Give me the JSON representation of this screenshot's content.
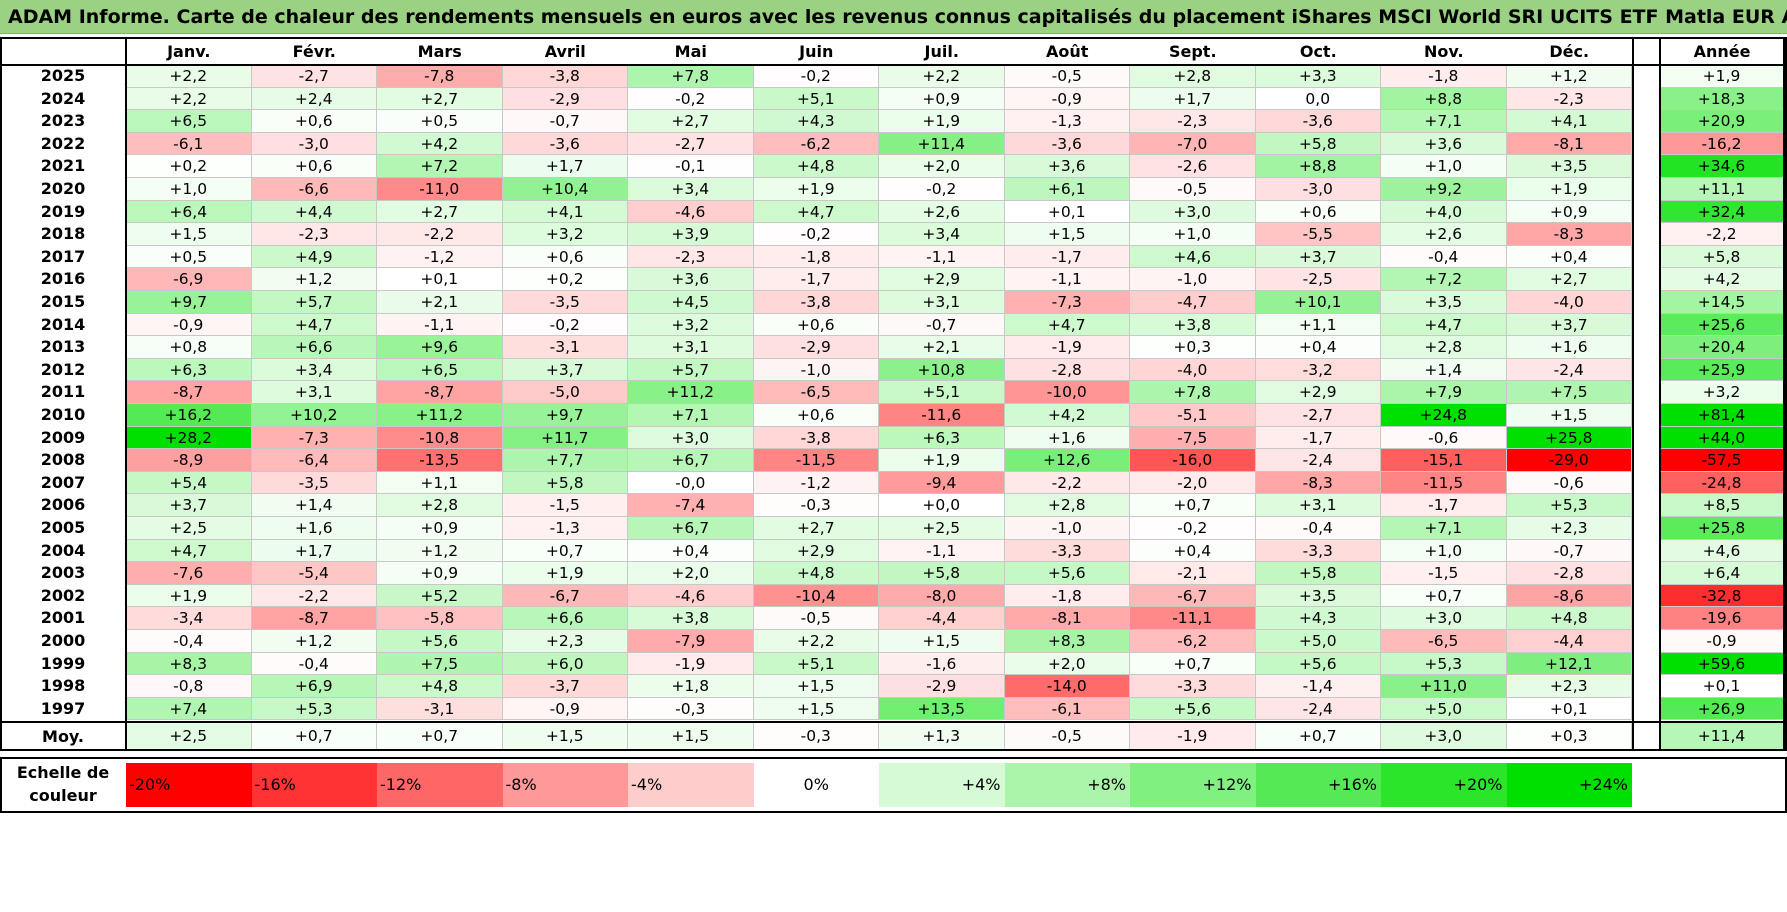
{
  "title": "ADAM Informe. Carte de chaleur des rendements mensuels en euros avec les revenus connus capitalisés du placement iShares MSCI World SRI UCITS ETF Matla EUR Acc",
  "chart_data": {
    "type": "heatmap",
    "columns": [
      "Janv.",
      "Févr.",
      "Mars",
      "Avril",
      "Mai",
      "Juin",
      "Juil.",
      "Août",
      "Sept.",
      "Oct.",
      "Nov.",
      "Déc."
    ],
    "year_column": "Année",
    "rows": [
      {
        "year": "2025",
        "values": [
          "+2,2",
          "-2,7",
          "-7,8",
          "-3,8",
          "+7,8",
          "-0,2",
          "+2,2",
          "-0,5",
          "+2,8",
          "+3,3",
          "-1,8",
          "+1,2"
        ],
        "annual": "+1,9"
      },
      {
        "year": "2024",
        "values": [
          "+2,2",
          "+2,4",
          "+2,7",
          "-2,9",
          "-0,2",
          "+5,1",
          "+0,9",
          "-0,9",
          "+1,7",
          "0,0",
          "+8,8",
          "-2,3"
        ],
        "annual": "+18,3"
      },
      {
        "year": "2023",
        "values": [
          "+6,5",
          "+0,6",
          "+0,5",
          "-0,7",
          "+2,7",
          "+4,3",
          "+1,9",
          "-1,3",
          "-2,3",
          "-3,6",
          "+7,1",
          "+4,1"
        ],
        "annual": "+20,9"
      },
      {
        "year": "2022",
        "values": [
          "-6,1",
          "-3,0",
          "+4,2",
          "-3,6",
          "-2,7",
          "-6,2",
          "+11,4",
          "-3,6",
          "-7,0",
          "+5,8",
          "+3,6",
          "-8,1"
        ],
        "annual": "-16,2"
      },
      {
        "year": "2021",
        "values": [
          "+0,2",
          "+0,6",
          "+7,2",
          "+1,7",
          "-0,1",
          "+4,8",
          "+2,0",
          "+3,6",
          "-2,6",
          "+8,8",
          "+1,0",
          "+3,5"
        ],
        "annual": "+34,6"
      },
      {
        "year": "2020",
        "values": [
          "+1,0",
          "-6,6",
          "-11,0",
          "+10,4",
          "+3,4",
          "+1,9",
          "-0,2",
          "+6,1",
          "-0,5",
          "-3,0",
          "+9,2",
          "+1,9"
        ],
        "annual": "+11,1"
      },
      {
        "year": "2019",
        "values": [
          "+6,4",
          "+4,4",
          "+2,7",
          "+4,1",
          "-4,6",
          "+4,7",
          "+2,6",
          "+0,1",
          "+3,0",
          "+0,6",
          "+4,0",
          "+0,9"
        ],
        "annual": "+32,4"
      },
      {
        "year": "2018",
        "values": [
          "+1,5",
          "-2,3",
          "-2,2",
          "+3,2",
          "+3,9",
          "-0,2",
          "+3,4",
          "+1,5",
          "+1,0",
          "-5,5",
          "+2,6",
          "-8,3"
        ],
        "annual": "-2,2"
      },
      {
        "year": "2017",
        "values": [
          "+0,5",
          "+4,9",
          "-1,2",
          "+0,6",
          "-2,3",
          "-1,8",
          "-1,1",
          "-1,7",
          "+4,6",
          "+3,7",
          "-0,4",
          "+0,4"
        ],
        "annual": "+5,8"
      },
      {
        "year": "2016",
        "values": [
          "-6,9",
          "+1,2",
          "+0,1",
          "+0,2",
          "+3,6",
          "-1,7",
          "+2,9",
          "-1,1",
          "-1,0",
          "-2,5",
          "+7,2",
          "+2,7"
        ],
        "annual": "+4,2"
      },
      {
        "year": "2015",
        "values": [
          "+9,7",
          "+5,7",
          "+2,1",
          "-3,5",
          "+4,5",
          "-3,8",
          "+3,1",
          "-7,3",
          "-4,7",
          "+10,1",
          "+3,5",
          "-4,0"
        ],
        "annual": "+14,5"
      },
      {
        "year": "2014",
        "values": [
          "-0,9",
          "+4,7",
          "-1,1",
          "-0,2",
          "+3,2",
          "+0,6",
          "-0,7",
          "+4,7",
          "+3,8",
          "+1,1",
          "+4,7",
          "+3,7"
        ],
        "annual": "+25,6"
      },
      {
        "year": "2013",
        "values": [
          "+0,8",
          "+6,6",
          "+9,6",
          "-3,1",
          "+3,1",
          "-2,9",
          "+2,1",
          "-1,9",
          "+0,3",
          "+0,4",
          "+2,8",
          "+1,6"
        ],
        "annual": "+20,4"
      },
      {
        "year": "2012",
        "values": [
          "+6,3",
          "+3,4",
          "+6,5",
          "+3,7",
          "+5,7",
          "-1,0",
          "+10,8",
          "-2,8",
          "-4,0",
          "-3,2",
          "+1,4",
          "-2,4"
        ],
        "annual": "+25,9"
      },
      {
        "year": "2011",
        "values": [
          "-8,7",
          "+3,1",
          "-8,7",
          "-5,0",
          "+11,2",
          "-6,5",
          "+5,1",
          "-10,0",
          "+7,8",
          "+2,9",
          "+7,9",
          "+7,5"
        ],
        "annual": "+3,2"
      },
      {
        "year": "2010",
        "values": [
          "+16,2",
          "+10,2",
          "+11,2",
          "+9,7",
          "+7,1",
          "+0,6",
          "-11,6",
          "+4,2",
          "-5,1",
          "-2,7",
          "+24,8",
          "+1,5"
        ],
        "annual": "+81,4"
      },
      {
        "year": "2009",
        "values": [
          "+28,2",
          "-7,3",
          "-10,8",
          "+11,7",
          "+3,0",
          "-3,8",
          "+6,3",
          "+1,6",
          "-7,5",
          "-1,7",
          "-0,6",
          "+25,8"
        ],
        "annual": "+44,0"
      },
      {
        "year": "2008",
        "values": [
          "-8,9",
          "-6,4",
          "-13,5",
          "+7,7",
          "+6,7",
          "-11,5",
          "+1,9",
          "+12,6",
          "-16,0",
          "-2,4",
          "-15,1",
          "-29,0"
        ],
        "annual": "-57,5"
      },
      {
        "year": "2007",
        "values": [
          "+5,4",
          "-3,5",
          "+1,1",
          "+5,8",
          "-0,0",
          "-1,2",
          "-9,4",
          "-2,2",
          "-2,0",
          "-8,3",
          "-11,5",
          "-0,6"
        ],
        "annual": "-24,8"
      },
      {
        "year": "2006",
        "values": [
          "+3,7",
          "+1,4",
          "+2,8",
          "-1,5",
          "-7,4",
          "-0,3",
          "+0,0",
          "+2,8",
          "+0,7",
          "+3,1",
          "-1,7",
          "+5,3"
        ],
        "annual": "+8,5"
      },
      {
        "year": "2005",
        "values": [
          "+2,5",
          "+1,6",
          "+0,9",
          "-1,3",
          "+6,7",
          "+2,7",
          "+2,5",
          "-1,0",
          "-0,2",
          "-0,4",
          "+7,1",
          "+2,3"
        ],
        "annual": "+25,8"
      },
      {
        "year": "2004",
        "values": [
          "+4,7",
          "+1,7",
          "+1,2",
          "+0,7",
          "+0,4",
          "+2,9",
          "-1,1",
          "-3,3",
          "+0,4",
          "-3,3",
          "+1,0",
          "-0,7"
        ],
        "annual": "+4,6"
      },
      {
        "year": "2003",
        "values": [
          "-7,6",
          "-5,4",
          "+0,9",
          "+1,9",
          "+2,0",
          "+4,8",
          "+5,8",
          "+5,6",
          "-2,1",
          "+5,8",
          "-1,5",
          "-2,8"
        ],
        "annual": "+6,4"
      },
      {
        "year": "2002",
        "values": [
          "+1,9",
          "-2,2",
          "+5,2",
          "-6,7",
          "-4,6",
          "-10,4",
          "-8,0",
          "-1,8",
          "-6,7",
          "+3,5",
          "+0,7",
          "-8,6"
        ],
        "annual": "-32,8"
      },
      {
        "year": "2001",
        "values": [
          "-3,4",
          "-8,7",
          "-5,8",
          "+6,6",
          "+3,8",
          "-0,5",
          "-4,4",
          "-8,1",
          "-11,1",
          "+4,3",
          "+3,0",
          "+4,8"
        ],
        "annual": "-19,6"
      },
      {
        "year": "2000",
        "values": [
          "-0,4",
          "+1,2",
          "+5,6",
          "+2,3",
          "-7,9",
          "+2,2",
          "+1,5",
          "+8,3",
          "-6,2",
          "+5,0",
          "-6,5",
          "-4,4"
        ],
        "annual": "-0,9"
      },
      {
        "year": "1999",
        "values": [
          "+8,3",
          "-0,4",
          "+7,5",
          "+6,0",
          "-1,9",
          "+5,1",
          "-1,6",
          "+2,0",
          "+0,7",
          "+5,6",
          "+5,3",
          "+12,1"
        ],
        "annual": "+59,6"
      },
      {
        "year": "1998",
        "values": [
          "-0,8",
          "+6,9",
          "+4,8",
          "-3,7",
          "+1,8",
          "+1,5",
          "-2,9",
          "-14,0",
          "-3,3",
          "-1,4",
          "+11,0",
          "+2,3"
        ],
        "annual": "+0,1"
      },
      {
        "year": "1997",
        "values": [
          "+7,4",
          "+5,3",
          "-3,1",
          "-0,9",
          "-0,3",
          "+1,5",
          "+13,5",
          "-6,1",
          "+5,6",
          "-2,4",
          "+5,0",
          "+0,1"
        ],
        "annual": "+26,9"
      }
    ],
    "average": {
      "label": "Moy.",
      "values": [
        "+2,5",
        "+0,7",
        "+0,7",
        "+1,5",
        "+1,5",
        "-0,3",
        "+1,3",
        "-0,5",
        "-1,9",
        "+0,7",
        "+3,0",
        "+0,3"
      ],
      "annual": "+11,4"
    },
    "legend": {
      "title_line1": "Echelle de",
      "title_line2": "couleur",
      "stops": [
        "-20%",
        "-16%",
        "-12%",
        "-8%",
        "-4%",
        "0%",
        "+4%",
        "+8%",
        "+12%",
        "+16%",
        "+20%",
        "+24%"
      ]
    },
    "colors": {
      "negative_max": "#ff0000",
      "neutral": "#ffffff",
      "positive_max": "#00e000",
      "header": "#9bd183"
    }
  }
}
